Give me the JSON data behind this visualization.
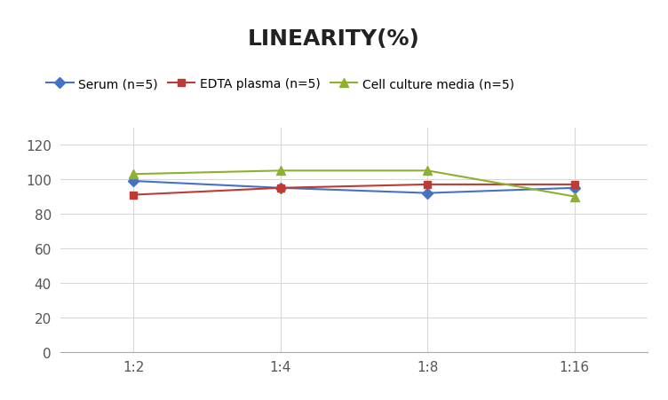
{
  "title": "LINEARITY(%)",
  "x_labels": [
    "1:2",
    "1:4",
    "1:8",
    "1:16"
  ],
  "x_positions": [
    0,
    1,
    2,
    3
  ],
  "series": [
    {
      "label": "Serum (n=5)",
      "values": [
        99,
        95,
        92,
        95
      ],
      "color": "#4472C4",
      "marker": "D",
      "markersize": 6
    },
    {
      "label": "EDTA plasma (n=5)",
      "values": [
        91,
        95,
        97,
        97
      ],
      "color": "#BE3A34",
      "marker": "s",
      "markersize": 6
    },
    {
      "label": "Cell culture media (n=5)",
      "values": [
        103,
        105,
        105,
        90
      ],
      "color": "#8DB030",
      "marker": "^",
      "markersize": 7
    }
  ],
  "ylim": [
    0,
    130
  ],
  "yticks": [
    0,
    20,
    40,
    60,
    80,
    100,
    120
  ],
  "background_color": "#ffffff",
  "grid_color": "#d8d8d8",
  "title_fontsize": 18,
  "legend_fontsize": 10,
  "tick_fontsize": 11
}
